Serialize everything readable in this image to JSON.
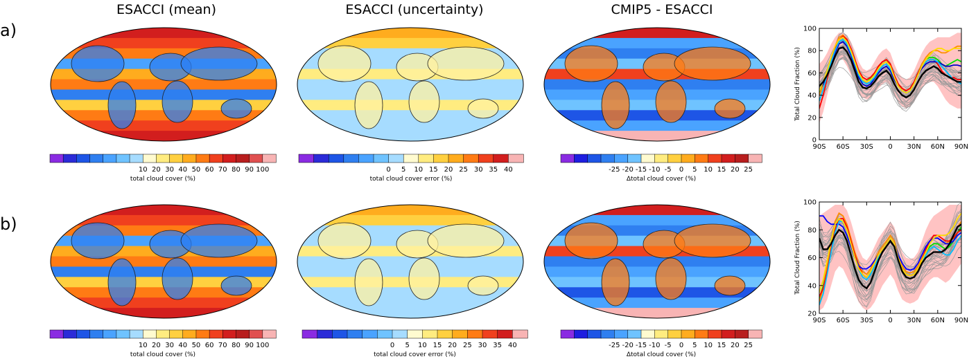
{
  "figure": {
    "columns": [
      "ESACCI (mean)",
      "ESACCI (uncertainty)",
      "CMIP5 - ESACCI"
    ],
    "rows": [
      "a)",
      "b)"
    ]
  },
  "colorbars": {
    "mean": {
      "colors": [
        "#8a2be2",
        "#2b2bd8",
        "#1e55e6",
        "#2f7ff0",
        "#4aa3ff",
        "#6fc3ff",
        "#a6dcff",
        "#fffbd0",
        "#ffec80",
        "#ffd040",
        "#ffac1e",
        "#ff7b14",
        "#f0401e",
        "#d21e1e",
        "#b81e1e",
        "#e05050",
        "#f8b4b4"
      ],
      "ticks": [
        "10",
        "20",
        "30",
        "40",
        "50",
        "60",
        "70",
        "80",
        "90",
        "100"
      ],
      "label": "total cloud cover (%)"
    },
    "uncertainty": {
      "colors": [
        "#8a2be2",
        "#2b2bd8",
        "#1e55e6",
        "#2f7ff0",
        "#4aa3ff",
        "#6fc3ff",
        "#a6dcff",
        "#fffbd0",
        "#ffec80",
        "#ffd040",
        "#ffac1e",
        "#ff7b14",
        "#f0401e",
        "#d21e1e",
        "#f8b4b4"
      ],
      "ticks": [
        "0",
        "5",
        "10",
        "15",
        "20",
        "25",
        "30",
        "35",
        "40"
      ],
      "label": "total cloud cover error (%)"
    },
    "diff": {
      "colors": [
        "#8a2be2",
        "#1e1ee0",
        "#1e55e6",
        "#2f7ff0",
        "#4aa3ff",
        "#6fc3ff",
        "#fffbd0",
        "#ffec80",
        "#ffd040",
        "#ffac1e",
        "#ff7b14",
        "#f0401e",
        "#d21e1e",
        "#b81e1e",
        "#f8b4b4"
      ],
      "ticks": [
        "-25",
        "-20",
        "-15",
        "-10",
        "-5",
        "0",
        "5",
        "10",
        "15",
        "20",
        "25"
      ],
      "label": "Δtotal cloud cover (%)"
    }
  },
  "chart_data": [
    {
      "type": "line",
      "panel": "a",
      "xlabel": "",
      "ylabel": "Total Cloud Fraction (%)",
      "xlim": [
        -90,
        90
      ],
      "ylim": [
        0,
        100
      ],
      "x": [
        -90,
        -85,
        -80,
        -75,
        -70,
        -65,
        -60,
        -55,
        -50,
        -45,
        -40,
        -35,
        -30,
        -25,
        -20,
        -15,
        -10,
        -5,
        0,
        5,
        10,
        15,
        20,
        25,
        30,
        35,
        40,
        45,
        50,
        55,
        60,
        65,
        70,
        75,
        80,
        85,
        90
      ],
      "xticks": [
        "90S",
        "60S",
        "30S",
        "0",
        "30N",
        "60N",
        "90N"
      ],
      "yticks": [
        "0",
        "20",
        "40",
        "60",
        "80",
        "100"
      ],
      "series": [
        {
          "color": "#000000",
          "values": [
            48,
            52,
            58,
            66,
            75,
            82,
            83,
            79,
            72,
            62,
            52,
            47,
            46,
            48,
            52,
            57,
            60,
            62,
            58,
            50,
            44,
            40,
            38,
            40,
            45,
            52,
            58,
            62,
            64,
            66,
            64,
            60,
            58,
            56,
            54,
            52,
            52
          ]
        },
        {
          "color": "#00e000",
          "values": [
            42,
            50,
            60,
            72,
            82,
            90,
            92,
            88,
            80,
            70,
            60,
            54,
            52,
            55,
            60,
            66,
            70,
            72,
            68,
            58,
            50,
            46,
            44,
            46,
            52,
            60,
            68,
            72,
            74,
            74,
            72,
            68,
            66,
            68,
            70,
            72,
            70
          ]
        },
        {
          "color": "#ff8c00",
          "values": [
            40,
            50,
            60,
            72,
            84,
            92,
            94,
            90,
            82,
            72,
            62,
            56,
            54,
            56,
            60,
            66,
            70,
            72,
            68,
            58,
            50,
            46,
            44,
            46,
            52,
            60,
            68,
            74,
            78,
            80,
            80,
            78,
            78,
            80,
            82,
            84,
            84
          ]
        },
        {
          "color": "#ff0000",
          "values": [
            28,
            40,
            55,
            70,
            82,
            90,
            93,
            90,
            82,
            72,
            62,
            56,
            54,
            56,
            60,
            66,
            70,
            72,
            68,
            58,
            50,
            46,
            44,
            46,
            52,
            60,
            66,
            70,
            72,
            72,
            68,
            62,
            58,
            56,
            56,
            54,
            54
          ]
        },
        {
          "color": "#0000c8",
          "values": [
            45,
            50,
            58,
            68,
            78,
            86,
            88,
            84,
            76,
            66,
            56,
            50,
            48,
            50,
            55,
            60,
            64,
            66,
            62,
            54,
            48,
            44,
            42,
            44,
            50,
            58,
            64,
            68,
            70,
            70,
            70,
            68,
            66,
            66,
            67,
            67,
            66
          ]
        },
        {
          "color": "#00c0ff",
          "values": [
            35,
            45,
            58,
            70,
            80,
            88,
            90,
            86,
            78,
            68,
            58,
            52,
            50,
            52,
            56,
            62,
            66,
            68,
            64,
            56,
            48,
            44,
            42,
            44,
            50,
            58,
            66,
            70,
            72,
            72,
            70,
            66,
            62,
            58,
            54,
            52,
            50
          ]
        },
        {
          "color": "#ffdc00",
          "values": [
            44,
            52,
            62,
            74,
            84,
            90,
            92,
            88,
            80,
            70,
            60,
            54,
            52,
            54,
            58,
            64,
            68,
            70,
            66,
            56,
            48,
            44,
            42,
            44,
            50,
            58,
            66,
            72,
            76,
            80,
            82,
            82,
            80,
            80,
            82,
            82,
            82
          ]
        }
      ],
      "envelope": {
        "color": "#ffb4b4",
        "lower": [
          15,
          25,
          40,
          55,
          66,
          72,
          72,
          66,
          58,
          50,
          42,
          38,
          36,
          38,
          42,
          46,
          50,
          52,
          48,
          40,
          34,
          30,
          28,
          30,
          34,
          40,
          46,
          50,
          52,
          52,
          48,
          42,
          36,
          32,
          30,
          28,
          28
        ],
        "upper": [
          68,
          72,
          78,
          86,
          92,
          96,
          96,
          94,
          88,
          80,
          70,
          64,
          62,
          64,
          70,
          76,
          80,
          82,
          78,
          68,
          60,
          56,
          54,
          56,
          62,
          70,
          78,
          84,
          88,
          90,
          92,
          92,
          92,
          92,
          94,
          96,
          96
        ]
      },
      "gray_band": {
        "count": 30,
        "color": "#9a9a9a"
      }
    },
    {
      "type": "line",
      "panel": "b",
      "xlabel": "",
      "ylabel": "Total Cloud Fraction (%)",
      "xlim": [
        -90,
        90
      ],
      "ylim": [
        20,
        100
      ],
      "x": [
        -90,
        -85,
        -80,
        -75,
        -70,
        -65,
        -60,
        -55,
        -50,
        -45,
        -40,
        -35,
        -30,
        -25,
        -20,
        -15,
        -10,
        -5,
        0,
        5,
        10,
        15,
        20,
        25,
        30,
        35,
        40,
        45,
        50,
        55,
        60,
        65,
        70,
        75,
        80,
        85,
        90
      ],
      "xticks": [
        "90S",
        "60S",
        "30S",
        "0",
        "30N",
        "60N",
        "90N"
      ],
      "yticks": [
        "20",
        "40",
        "60",
        "80",
        "100"
      ],
      "series": [
        {
          "color": "#000000",
          "values": [
            74,
            66,
            66,
            70,
            76,
            80,
            78,
            72,
            62,
            52,
            44,
            40,
            38,
            42,
            50,
            58,
            64,
            68,
            72,
            68,
            58,
            50,
            46,
            45,
            46,
            50,
            56,
            60,
            62,
            64,
            64,
            64,
            66,
            70,
            76,
            82,
            84
          ]
        },
        {
          "color": "#00e000",
          "values": [
            30,
            40,
            55,
            72,
            84,
            88,
            86,
            80,
            70,
            60,
            52,
            48,
            46,
            50,
            56,
            62,
            66,
            70,
            74,
            70,
            60,
            52,
            48,
            47,
            48,
            52,
            58,
            64,
            68,
            70,
            70,
            68,
            66,
            68,
            72,
            78,
            82
          ]
        },
        {
          "color": "#ff8c00",
          "values": [
            28,
            38,
            55,
            72,
            86,
            92,
            90,
            84,
            74,
            64,
            56,
            50,
            48,
            52,
            58,
            64,
            68,
            72,
            76,
            72,
            62,
            54,
            50,
            49,
            50,
            54,
            60,
            66,
            72,
            74,
            74,
            72,
            70,
            72,
            76,
            82,
            86
          ]
        },
        {
          "color": "#ff0000",
          "values": [
            32,
            38,
            50,
            66,
            80,
            88,
            88,
            82,
            72,
            62,
            54,
            48,
            46,
            50,
            56,
            62,
            66,
            70,
            74,
            70,
            60,
            52,
            48,
            47,
            48,
            52,
            58,
            66,
            72,
            76,
            76,
            74,
            72,
            72,
            74,
            78,
            80
          ]
        },
        {
          "color": "#0000ff",
          "values": [
            90,
            90,
            86,
            84,
            84,
            84,
            82,
            76,
            68,
            60,
            54,
            52,
            52,
            54,
            58,
            62,
            66,
            70,
            74,
            70,
            62,
            56,
            52,
            51,
            52,
            56,
            62,
            68,
            72,
            74,
            74,
            72,
            70,
            70,
            72,
            76,
            78
          ]
        },
        {
          "color": "#00c0ff",
          "values": [
            26,
            34,
            48,
            64,
            78,
            86,
            86,
            80,
            70,
            60,
            52,
            46,
            44,
            48,
            54,
            60,
            64,
            68,
            72,
            68,
            58,
            50,
            46,
            45,
            46,
            50,
            56,
            62,
            66,
            68,
            66,
            64,
            62,
            62,
            66,
            72,
            76
          ]
        },
        {
          "color": "#ffdc00",
          "values": [
            35,
            44,
            58,
            72,
            84,
            88,
            86,
            80,
            70,
            60,
            52,
            48,
            46,
            50,
            56,
            62,
            66,
            70,
            74,
            70,
            60,
            52,
            48,
            47,
            48,
            52,
            58,
            64,
            70,
            74,
            76,
            76,
            76,
            78,
            82,
            88,
            92
          ]
        }
      ],
      "envelope": {
        "color": "#ffb4b4",
        "lower": [
          22,
          24,
          30,
          40,
          50,
          54,
          52,
          46,
          40,
          34,
          28,
          24,
          22,
          24,
          28,
          34,
          40,
          44,
          48,
          44,
          36,
          30,
          28,
          27,
          28,
          30,
          36,
          40,
          44,
          46,
          46,
          44,
          42,
          44,
          48,
          52,
          56
        ],
        "upper": [
          90,
          92,
          94,
          96,
          98,
          98,
          98,
          94,
          86,
          76,
          66,
          60,
          58,
          62,
          68,
          74,
          78,
          82,
          86,
          82,
          72,
          64,
          60,
          59,
          60,
          64,
          72,
          80,
          86,
          90,
          92,
          94,
          96,
          98,
          98,
          98,
          98
        ]
      },
      "gray_band": {
        "count": 30,
        "color": "#9a9a9a"
      }
    }
  ]
}
